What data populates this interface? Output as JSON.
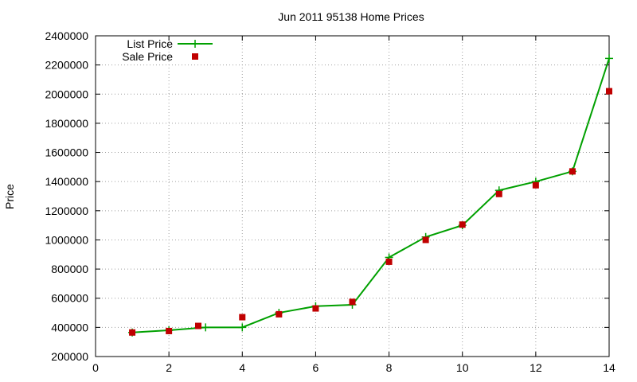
{
  "chart_data": {
    "type": "line",
    "title": "Jun 2011 95138 Home Prices",
    "xlabel": "",
    "ylabel": "Price",
    "xlim": [
      0,
      14
    ],
    "ylim": [
      200000,
      2400000
    ],
    "x_ticks": [
      0,
      2,
      4,
      6,
      8,
      10,
      12,
      14
    ],
    "y_ticks": [
      200000,
      400000,
      600000,
      800000,
      1000000,
      1200000,
      1400000,
      1600000,
      1800000,
      2000000,
      2200000,
      2400000
    ],
    "grid": true,
    "legend_position": "top-left",
    "series": [
      {
        "name": "List Price",
        "kind": "line",
        "marker": "plus",
        "color": "#00a000",
        "x": [
          1,
          2,
          3,
          4,
          5,
          6,
          7,
          8,
          9,
          10,
          11,
          12,
          13,
          14
        ],
        "y": [
          365000,
          380000,
          400000,
          400000,
          500000,
          545000,
          555000,
          880000,
          1020000,
          1100000,
          1340000,
          1400000,
          1470000,
          2245000
        ]
      },
      {
        "name": "Sale Price",
        "kind": "scatter",
        "marker": "square",
        "color": "#c00000",
        "x": [
          1,
          2,
          2.8,
          4,
          5,
          6,
          7,
          8,
          9,
          10,
          11,
          12,
          13,
          14
        ],
        "y": [
          365000,
          375000,
          410000,
          470000,
          490000,
          530000,
          575000,
          850000,
          1000000,
          1105000,
          1315000,
          1375000,
          1470000,
          2020000
        ]
      }
    ]
  }
}
